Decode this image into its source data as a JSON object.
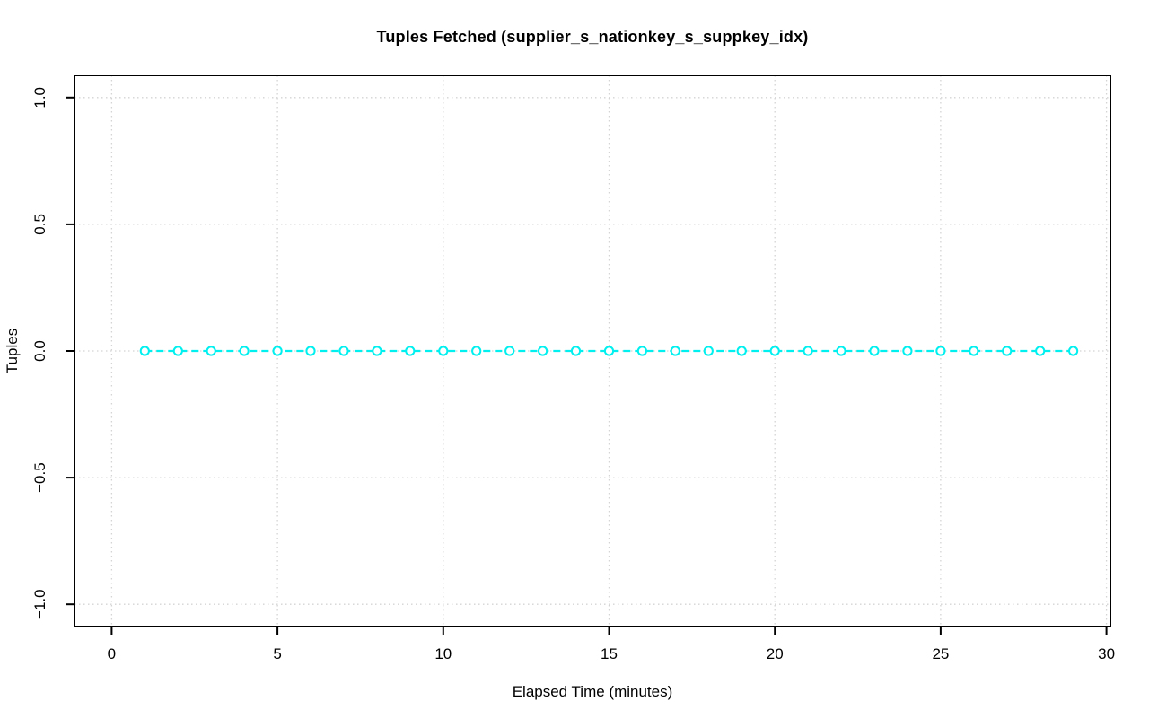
{
  "figure": {
    "kind": "r-base-plot",
    "background": "#ffffff"
  },
  "chart_data": {
    "type": "line",
    "title": "Tuples Fetched (supplier_s_nationkey_s_suppkey_idx)",
    "xlabel": "Elapsed Time (minutes)",
    "ylabel": "Tuples",
    "x": [
      1,
      2,
      3,
      4,
      5,
      6,
      7,
      8,
      9,
      10,
      11,
      12,
      13,
      14,
      15,
      16,
      17,
      18,
      19,
      20,
      21,
      22,
      23,
      24,
      25,
      26,
      27,
      28,
      29
    ],
    "series": [
      {
        "name": "Tuples",
        "values": [
          0,
          0,
          0,
          0,
          0,
          0,
          0,
          0,
          0,
          0,
          0,
          0,
          0,
          0,
          0,
          0,
          0,
          0,
          0,
          0,
          0,
          0,
          0,
          0,
          0,
          0,
          0,
          0,
          0
        ]
      }
    ],
    "xlim": [
      -1.12,
      30.12
    ],
    "ylim": [
      -1.088,
      1.088
    ],
    "xticks": [
      0,
      5,
      10,
      15,
      20,
      25,
      30
    ],
    "xtick_labels": [
      "0",
      "5",
      "10",
      "15",
      "20",
      "25",
      "30"
    ],
    "yticks": [
      -1.0,
      -0.5,
      0.0,
      0.5,
      1.0
    ],
    "ytick_labels": [
      "−1.0",
      "−0.5",
      "0.0",
      "0.5",
      "1.0"
    ],
    "grid": true,
    "grid_style": "dotted",
    "line_style": "dashed",
    "marker": "open-circle",
    "legend": "none",
    "colors": {
      "series": "#00efef",
      "grid": "#d4d4d4",
      "axis": "#000000",
      "text": "#000000",
      "marker_fill": "#ffffff"
    }
  }
}
